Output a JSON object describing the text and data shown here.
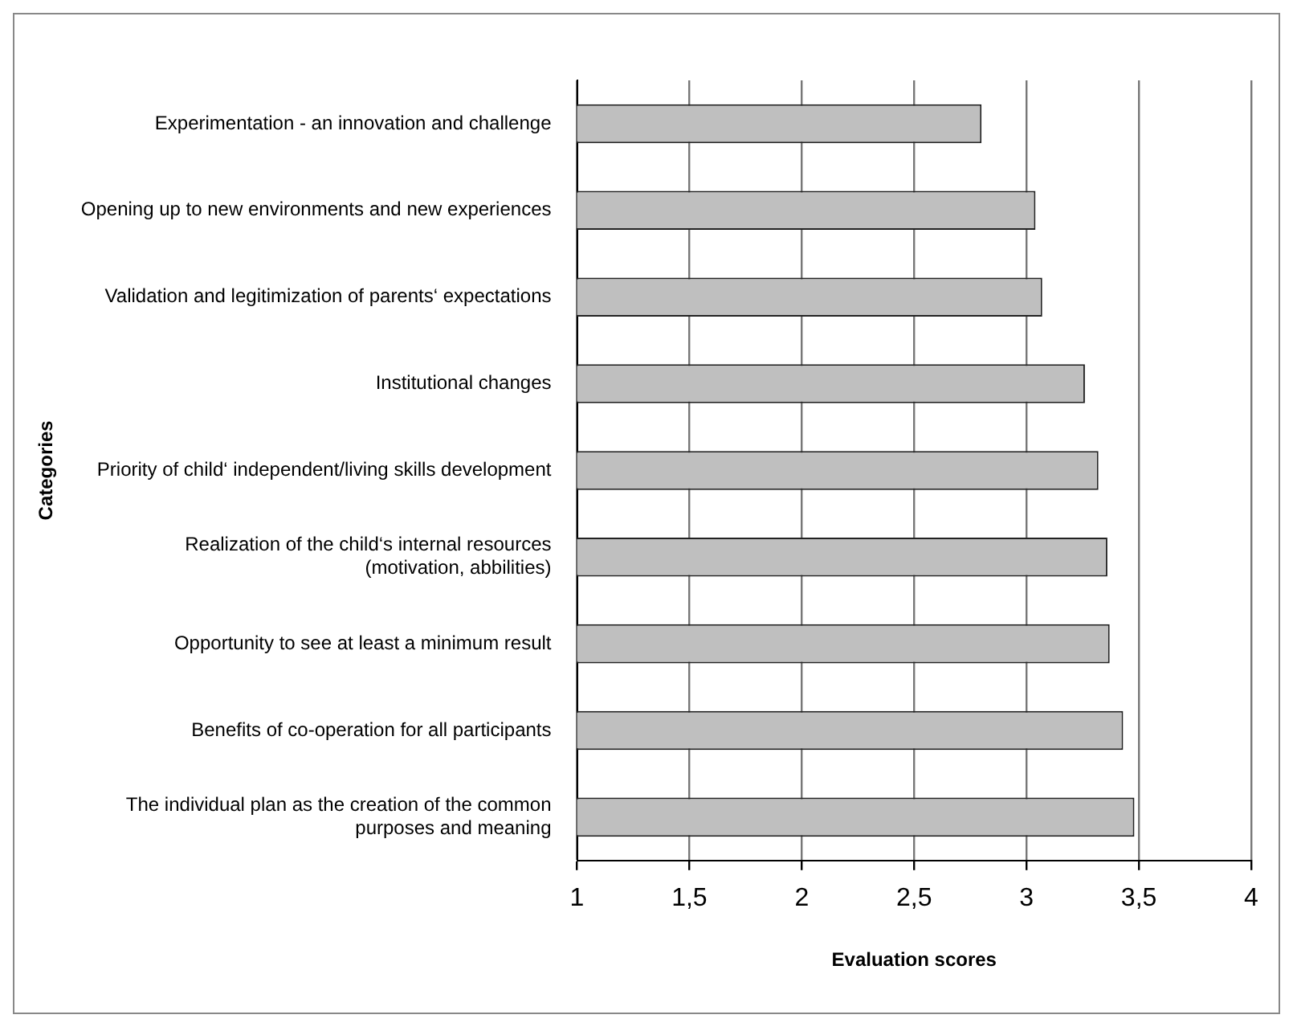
{
  "chart_data": {
    "type": "bar",
    "orientation": "horizontal",
    "xlabel": "Evaluation scores",
    "ylabel": "Categories",
    "categories": [
      "Experimentation - an innovation and challenge",
      "Opening up to new environments and new experiences",
      "Validation and legitimization of parents‘ expectations",
      "Institutional changes",
      "Priority of child‘ independent/living skills development",
      "Realization of the child‘s internal resources (motivation, abbilities)",
      "Opportunity to see at least a minimum result",
      "Benefits of co-operation for all participants",
      "The individual plan as the creation of the common purposes and meaning"
    ],
    "values": [
      2.8,
      3.04,
      3.07,
      3.26,
      3.32,
      3.36,
      3.37,
      3.43,
      3.48
    ],
    "color": "#bfbfbf",
    "xlim": [
      1,
      4
    ],
    "xticks": [
      1,
      {
        "value": 1.5,
        "label": "1,5"
      },
      2,
      {
        "value": 2.5,
        "label": "2,5"
      },
      3,
      {
        "value": 3.5,
        "label": "3,5"
      },
      4
    ],
    "grid": "x",
    "legend": false
  }
}
